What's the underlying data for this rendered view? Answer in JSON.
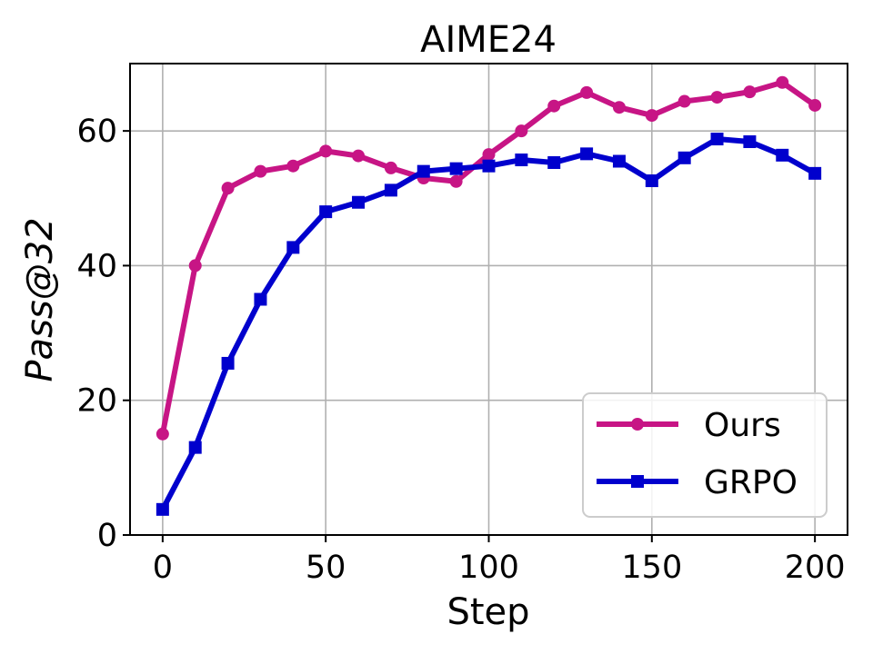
{
  "chart_data": {
    "type": "line",
    "title": "AIME24",
    "xlabel": "Step",
    "ylabel": "Pass@32",
    "xlim": [
      -10,
      210
    ],
    "ylim": [
      0,
      70
    ],
    "xticks": [
      0,
      50,
      100,
      150,
      200
    ],
    "yticks": [
      0,
      20,
      40,
      60
    ],
    "grid": true,
    "legend_position": "lower right",
    "x": [
      0,
      10,
      20,
      30,
      40,
      50,
      60,
      70,
      80,
      90,
      100,
      110,
      120,
      130,
      140,
      150,
      160,
      170,
      180,
      190,
      200
    ],
    "series": [
      {
        "name": "Ours",
        "color": "#c71585",
        "marker": "circle",
        "values": [
          15.0,
          40.0,
          51.5,
          54.0,
          54.8,
          57.0,
          56.3,
          54.5,
          53.0,
          52.5,
          56.5,
          60.0,
          63.7,
          65.7,
          63.5,
          62.3,
          64.4,
          65.0,
          65.8,
          67.2,
          63.8
        ]
      },
      {
        "name": "GRPO",
        "color": "#0000cd",
        "marker": "square",
        "values": [
          3.8,
          13.0,
          25.5,
          35.0,
          42.7,
          48.0,
          49.4,
          51.2,
          54.0,
          54.4,
          54.8,
          55.7,
          55.3,
          56.6,
          55.5,
          52.6,
          56.0,
          58.8,
          58.4,
          56.4,
          53.7
        ]
      }
    ]
  }
}
